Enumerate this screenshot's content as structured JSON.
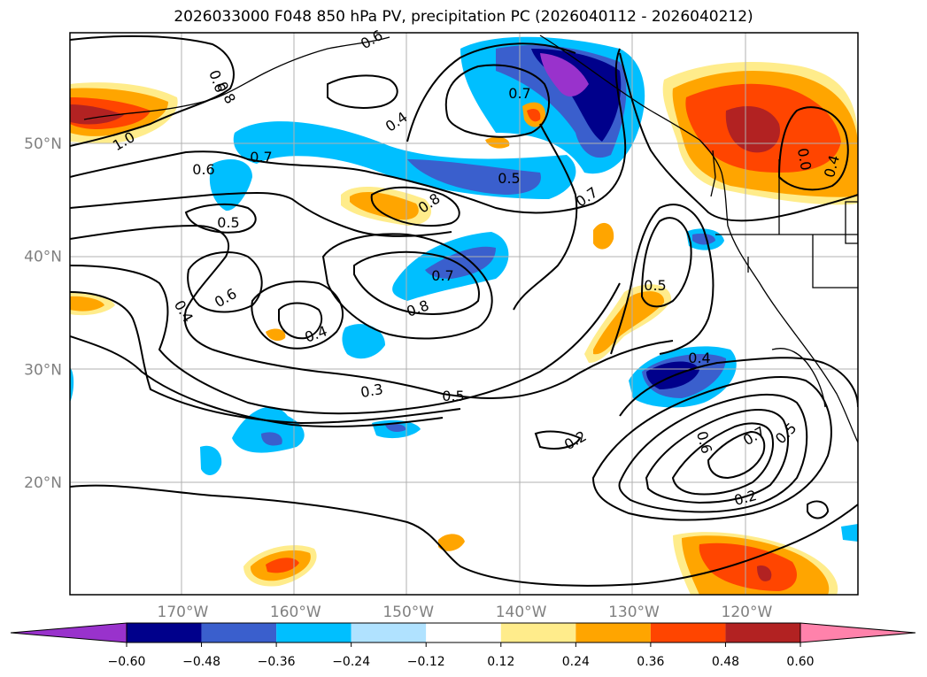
{
  "title": "2026033000 F048 850 hPa PV, precipitation PC (2026040112 - 2026040212)",
  "map": {
    "lat_labels": [
      "50°N",
      "40°N",
      "30°N",
      "20°N"
    ],
    "lon_labels": [
      "170°W",
      "160°W",
      "150°W",
      "140°W",
      "130°W",
      "120°W"
    ],
    "lat_values": [
      50,
      40,
      30,
      20
    ],
    "lon_values": [
      -170,
      -160,
      -150,
      -140,
      -130,
      -120
    ],
    "gridlines": true
  },
  "contour_labels": [
    "0.6",
    "0.6",
    "0.8",
    "1.0",
    "0.6",
    "0.7",
    "0.4",
    "0.7",
    "0.5",
    "0.8",
    "0.7",
    "0.5",
    "0.6",
    "0.7",
    "0.8",
    "0.5",
    "0.4",
    "0.4",
    "0.3",
    "0.5",
    "0.4",
    "0.2",
    "0.6",
    "0.7",
    "0.5",
    "0.2",
    "0.0",
    "0.4"
  ],
  "colorbar": {
    "ticks": [
      "−0.60",
      "−0.48",
      "−0.36",
      "−0.24",
      "−0.12",
      "0.12",
      "0.24",
      "0.36",
      "0.48",
      "0.60"
    ],
    "colors": [
      "#9932cc",
      "#00008b",
      "#3a5fcd",
      "#00bfff",
      "#b0e2ff",
      "#ffffff",
      "#ffec8b",
      "#ffa500",
      "#ff4500",
      "#b22222",
      "#ff82ab"
    ]
  }
}
